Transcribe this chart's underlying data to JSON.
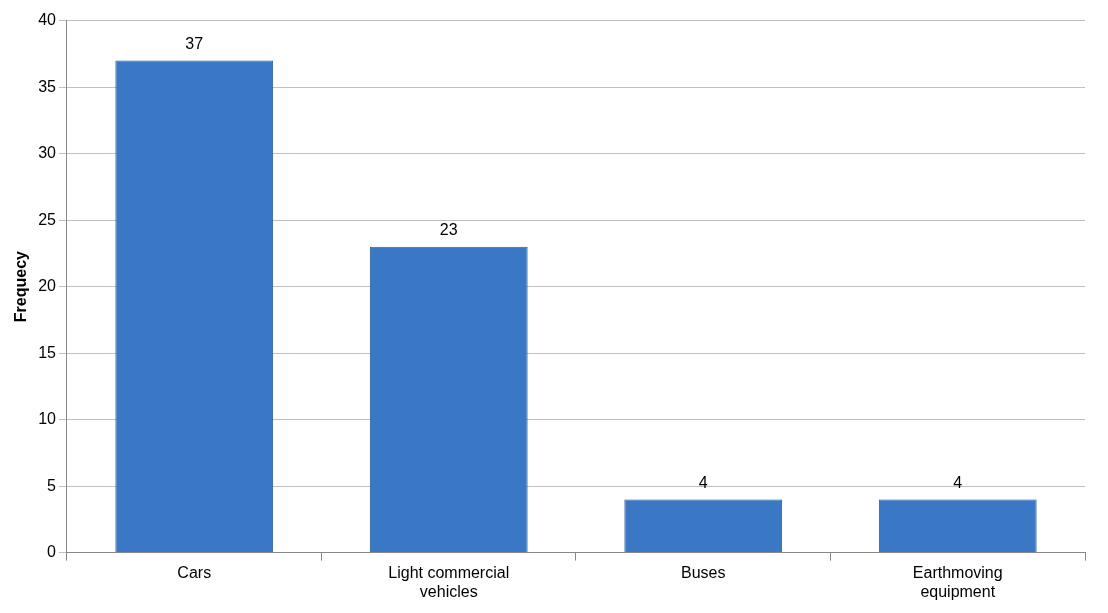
{
  "chart_data": {
    "type": "bar",
    "ylabel": "Frequecy",
    "categories": [
      "Cars",
      "Light commercial vehicles",
      "Buses",
      "Earthmoving equipment"
    ],
    "values": [
      37,
      23,
      4,
      4
    ],
    "color": "#3a78c6",
    "ylim": [
      0,
      40
    ],
    "yticks": [
      0,
      5,
      10,
      15,
      20,
      25,
      30,
      35,
      40
    ],
    "grid": "y",
    "data_labels": true,
    "legend": false
  }
}
